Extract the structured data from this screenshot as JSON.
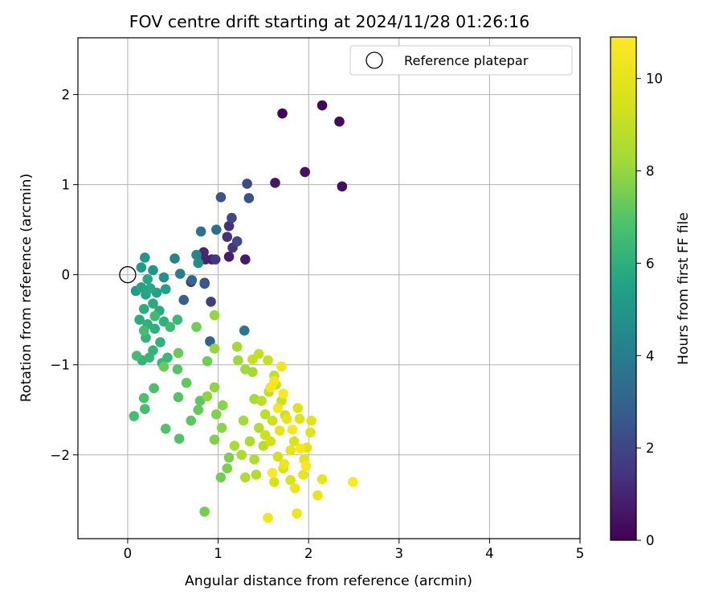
{
  "chart_data": {
    "type": "scatter",
    "title": "FOV centre drift starting at 2024/11/28 01:26:16",
    "xlabel": "Angular distance from reference (arcmin)",
    "ylabel": "Rotation from reference (arcmin)",
    "xlim": [
      -0.55,
      5.0
    ],
    "ylim": [
      -2.93,
      2.63
    ],
    "xticks": [
      0,
      1,
      2,
      3,
      4,
      5
    ],
    "xtick_labels": [
      "0",
      "1",
      "2",
      "3",
      "4",
      "5"
    ],
    "yticks": [
      -2,
      -1,
      0,
      1,
      2
    ],
    "ytick_labels": [
      "−2",
      "−1",
      "0",
      "1",
      "2"
    ],
    "grid": true,
    "legend": {
      "placement": "top-right",
      "entries": [
        {
          "label": "Reference platepar",
          "marker": "open-circle"
        }
      ]
    },
    "reference_point": [
      0,
      0
    ],
    "colorbar": {
      "label": "Hours from first FF file",
      "colormap": "viridis",
      "range": [
        0,
        10.9
      ],
      "ticks": [
        0,
        2,
        4,
        6,
        8,
        10
      ],
      "tick_labels": [
        "0",
        "2",
        "4",
        "6",
        "8",
        "10"
      ]
    },
    "points": [
      [
        1.71,
        1.79,
        0.1
      ],
      [
        2.15,
        1.88,
        0.2
      ],
      [
        2.34,
        1.7,
        0.3
      ],
      [
        2.37,
        0.98,
        0.4
      ],
      [
        1.96,
        1.14,
        0.5
      ],
      [
        1.63,
        1.02,
        0.6
      ],
      [
        1.3,
        0.17,
        0.7
      ],
      [
        1.12,
        0.2,
        0.8
      ],
      [
        0.93,
        0.17,
        0.9
      ],
      [
        0.86,
        0.17,
        1.0
      ],
      [
        0.84,
        0.25,
        1.1
      ],
      [
        0.7,
        -0.08,
        1.2
      ],
      [
        1.12,
        0.54,
        1.3
      ],
      [
        1.1,
        0.42,
        1.4
      ],
      [
        1.16,
        0.3,
        1.5
      ],
      [
        0.97,
        0.17,
        1.6
      ],
      [
        0.85,
        -0.09,
        1.7
      ],
      [
        0.92,
        -0.3,
        1.8
      ],
      [
        1.15,
        0.63,
        2.0
      ],
      [
        1.21,
        0.37,
        2.1
      ],
      [
        1.32,
        1.01,
        2.2
      ],
      [
        1.34,
        0.85,
        2.4
      ],
      [
        1.03,
        0.86,
        2.5
      ],
      [
        0.85,
        -0.1,
        2.6
      ],
      [
        0.62,
        -0.28,
        2.8
      ],
      [
        0.91,
        -0.74,
        3.0
      ],
      [
        0.71,
        -0.06,
        3.2
      ],
      [
        0.98,
        0.5,
        3.4
      ],
      [
        0.81,
        0.48,
        3.6
      ],
      [
        1.29,
        -0.62,
        3.8
      ],
      [
        0.58,
        0.01,
        4.0
      ],
      [
        0.52,
        0.18,
        4.2
      ],
      [
        0.76,
        0.22,
        4.4
      ],
      [
        0.78,
        0.13,
        4.6
      ],
      [
        0.4,
        -0.03,
        4.8
      ],
      [
        0.28,
        0.05,
        5.0
      ],
      [
        0.19,
        0.19,
        5.1
      ],
      [
        0.15,
        0.08,
        5.2
      ],
      [
        0.09,
        -0.18,
        5.3
      ],
      [
        0.42,
        -0.16,
        5.4
      ],
      [
        0.32,
        -0.2,
        5.5
      ],
      [
        0.2,
        -0.22,
        5.6
      ],
      [
        0.15,
        -0.14,
        5.6
      ],
      [
        0.22,
        -0.05,
        5.7
      ],
      [
        0.25,
        -0.15,
        5.7
      ],
      [
        0.28,
        -0.32,
        5.8
      ],
      [
        0.35,
        -0.4,
        5.8
      ],
      [
        0.18,
        -0.38,
        5.9
      ],
      [
        0.13,
        -0.5,
        5.9
      ],
      [
        0.22,
        -0.55,
        6.0
      ],
      [
        0.3,
        -0.6,
        6.0
      ],
      [
        0.4,
        -0.52,
        6.0
      ],
      [
        0.36,
        -0.75,
        6.1
      ],
      [
        0.28,
        -0.84,
        6.1
      ],
      [
        0.2,
        -0.7,
        6.2
      ],
      [
        0.16,
        -0.95,
        6.2
      ],
      [
        0.24,
        -0.92,
        6.3
      ],
      [
        0.38,
        -0.98,
        6.3
      ],
      [
        0.44,
        -0.92,
        6.4
      ],
      [
        0.55,
        -0.5,
        6.4
      ],
      [
        0.3,
        -0.46,
        6.5
      ],
      [
        0.47,
        -0.58,
        6.5
      ],
      [
        0.18,
        -0.62,
        6.6
      ],
      [
        0.1,
        -0.9,
        6.6
      ],
      [
        0.07,
        -1.57,
        6.7
      ],
      [
        0.19,
        -1.49,
        6.7
      ],
      [
        0.18,
        -1.37,
        6.8
      ],
      [
        0.29,
        -1.26,
        6.8
      ],
      [
        0.42,
        -1.71,
        6.9
      ],
      [
        0.57,
        -1.82,
        6.9
      ],
      [
        0.56,
        -1.36,
        7.0
      ],
      [
        0.55,
        -1.05,
        7.0
      ],
      [
        0.7,
        -1.62,
        7.1
      ],
      [
        0.8,
        -1.4,
        7.1
      ],
      [
        0.78,
        -1.5,
        7.2
      ],
      [
        0.65,
        -1.2,
        7.2
      ],
      [
        0.56,
        -0.87,
        7.3
      ],
      [
        0.4,
        -1.02,
        7.3
      ],
      [
        0.76,
        -0.58,
        7.4
      ],
      [
        0.88,
        -0.96,
        7.4
      ],
      [
        0.85,
        -2.63,
        7.5
      ],
      [
        1.03,
        -2.25,
        7.5
      ],
      [
        1.12,
        -2.03,
        7.6
      ],
      [
        1.1,
        -2.15,
        7.6
      ],
      [
        0.96,
        -1.83,
        7.7
      ],
      [
        0.98,
        -1.55,
        7.7
      ],
      [
        1.04,
        -1.7,
        7.8
      ],
      [
        1.05,
        -1.45,
        7.8
      ],
      [
        0.96,
        -1.25,
        7.9
      ],
      [
        0.88,
        -1.35,
        7.9
      ],
      [
        0.96,
        -0.82,
        8.0
      ],
      [
        0.96,
        -0.45,
        8.0
      ],
      [
        1.22,
        -0.95,
        8.1
      ],
      [
        1.3,
        -1.05,
        8.1
      ],
      [
        1.21,
        -0.8,
        8.2
      ],
      [
        1.38,
        -1.08,
        8.2
      ],
      [
        1.4,
        -1.38,
        8.3
      ],
      [
        1.28,
        -1.62,
        8.3
      ],
      [
        1.18,
        -1.9,
        8.4
      ],
      [
        1.26,
        -2.0,
        8.4
      ],
      [
        1.35,
        -1.85,
        8.5
      ],
      [
        1.4,
        -2.05,
        8.5
      ],
      [
        1.3,
        -2.25,
        8.6
      ],
      [
        1.42,
        -2.22,
        8.6
      ],
      [
        1.5,
        -1.9,
        8.7
      ],
      [
        1.45,
        -1.7,
        8.7
      ],
      [
        1.52,
        -1.55,
        8.8
      ],
      [
        1.48,
        -1.4,
        8.8
      ],
      [
        1.56,
        -1.3,
        8.9
      ],
      [
        1.62,
        -1.12,
        8.9
      ],
      [
        1.55,
        -0.95,
        9.0
      ],
      [
        1.45,
        -0.88,
        9.0
      ],
      [
        1.38,
        -0.94,
        9.1
      ],
      [
        1.64,
        -1.22,
        9.1
      ],
      [
        1.7,
        -1.4,
        9.2
      ],
      [
        1.74,
        -1.56,
        9.2
      ],
      [
        1.6,
        -1.62,
        9.3
      ],
      [
        1.52,
        -1.78,
        9.3
      ],
      [
        1.58,
        -1.85,
        9.4
      ],
      [
        1.66,
        -2.02,
        9.4
      ],
      [
        1.72,
        -2.15,
        9.5
      ],
      [
        1.62,
        -2.3,
        9.5
      ],
      [
        1.8,
        -2.28,
        9.6
      ],
      [
        1.84,
        -1.85,
        9.6
      ],
      [
        1.9,
        -1.6,
        9.7
      ],
      [
        1.88,
        -1.48,
        9.7
      ],
      [
        1.98,
        -1.92,
        9.8
      ],
      [
        2.02,
        -1.75,
        9.8
      ],
      [
        2.03,
        -1.62,
        9.9
      ],
      [
        1.95,
        -2.05,
        9.9
      ],
      [
        1.76,
        -1.6,
        10.0
      ],
      [
        1.68,
        -1.73,
        10.0
      ],
      [
        1.8,
        -1.95,
        10.1
      ],
      [
        1.94,
        -2.22,
        10.1
      ],
      [
        2.1,
        -2.45,
        10.2
      ],
      [
        2.15,
        -2.27,
        10.2
      ],
      [
        1.85,
        -2.37,
        10.3
      ],
      [
        1.87,
        -2.65,
        10.3
      ],
      [
        1.55,
        -2.7,
        10.4
      ],
      [
        1.73,
        -2.1,
        10.4
      ],
      [
        1.62,
        -1.18,
        10.5
      ],
      [
        1.7,
        -1.02,
        10.5
      ],
      [
        1.58,
        -1.25,
        10.6
      ],
      [
        1.66,
        -1.48,
        10.6
      ],
      [
        1.82,
        -1.72,
        10.7
      ],
      [
        1.91,
        -1.93,
        10.7
      ],
      [
        1.97,
        -2.12,
        10.8
      ],
      [
        2.49,
        -2.3,
        10.8
      ],
      [
        1.6,
        -2.2,
        10.9
      ],
      [
        1.72,
        -1.32,
        10.9
      ]
    ]
  }
}
